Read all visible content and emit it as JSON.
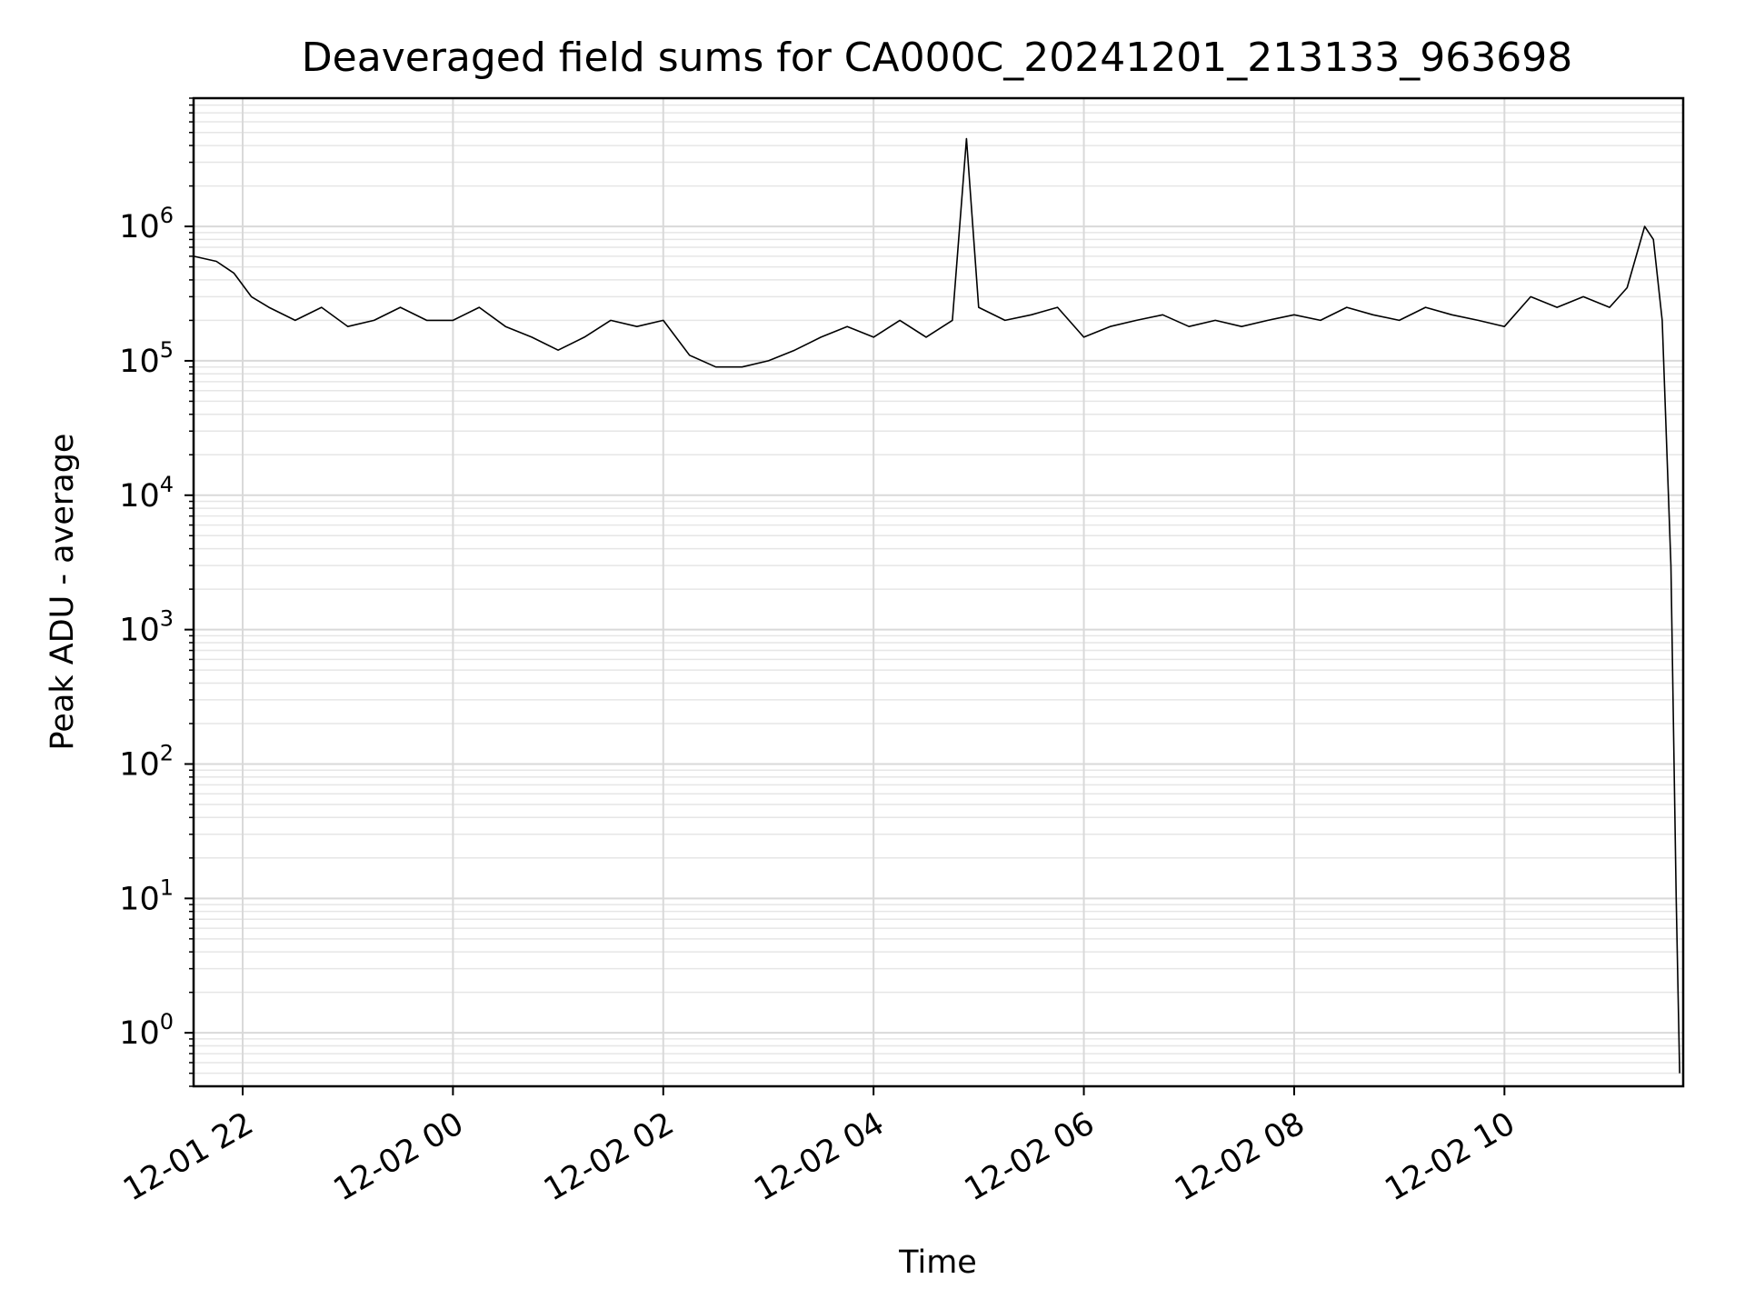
{
  "chart_data": {
    "type": "line",
    "title": "Deaveraged field sums for CA000C_20241201_213133_963698",
    "xlabel": "Time",
    "ylabel": "Peak ADU - average",
    "yscale": "log",
    "ylim": [
      0.4,
      9000000
    ],
    "xlim": [
      "2024-12-01 21:32",
      "2024-12-02 11:42"
    ],
    "grid": true,
    "x_ticks": [
      {
        "value": "2024-12-01 22:00",
        "label": "12-01 22"
      },
      {
        "value": "2024-12-02 00:00",
        "label": "12-02 00"
      },
      {
        "value": "2024-12-02 02:00",
        "label": "12-02 02"
      },
      {
        "value": "2024-12-02 04:00",
        "label": "12-02 04"
      },
      {
        "value": "2024-12-02 06:00",
        "label": "12-02 06"
      },
      {
        "value": "2024-12-02 08:00",
        "label": "12-02 08"
      },
      {
        "value": "2024-12-02 10:00",
        "label": "12-02 10"
      }
    ],
    "y_ticks": [
      {
        "value": 1,
        "base": "10",
        "exp": "0"
      },
      {
        "value": 10,
        "base": "10",
        "exp": "1"
      },
      {
        "value": 100,
        "base": "10",
        "exp": "2"
      },
      {
        "value": 1000,
        "base": "10",
        "exp": "3"
      },
      {
        "value": 10000,
        "base": "10",
        "exp": "4"
      },
      {
        "value": 100000,
        "base": "10",
        "exp": "5"
      },
      {
        "value": 1000000,
        "base": "10",
        "exp": "6"
      }
    ],
    "series": [
      {
        "color": "#000000",
        "x": [
          "2024-12-01 21:32",
          "2024-12-01 21:45",
          "2024-12-01 21:55",
          "2024-12-01 22:05",
          "2024-12-01 22:15",
          "2024-12-01 22:30",
          "2024-12-01 22:45",
          "2024-12-01 23:00",
          "2024-12-01 23:15",
          "2024-12-01 23:30",
          "2024-12-01 23:45",
          "2024-12-02 00:00",
          "2024-12-02 00:15",
          "2024-12-02 00:30",
          "2024-12-02 00:45",
          "2024-12-02 01:00",
          "2024-12-02 01:15",
          "2024-12-02 01:30",
          "2024-12-02 01:45",
          "2024-12-02 02:00",
          "2024-12-02 02:15",
          "2024-12-02 02:30",
          "2024-12-02 02:45",
          "2024-12-02 03:00",
          "2024-12-02 03:15",
          "2024-12-02 03:30",
          "2024-12-02 03:45",
          "2024-12-02 04:00",
          "2024-12-02 04:15",
          "2024-12-02 04:30",
          "2024-12-02 04:45",
          "2024-12-02 04:53",
          "2024-12-02 05:00",
          "2024-12-02 05:15",
          "2024-12-02 05:30",
          "2024-12-02 05:45",
          "2024-12-02 06:00",
          "2024-12-02 06:15",
          "2024-12-02 06:30",
          "2024-12-02 06:45",
          "2024-12-02 07:00",
          "2024-12-02 07:15",
          "2024-12-02 07:30",
          "2024-12-02 07:45",
          "2024-12-02 08:00",
          "2024-12-02 08:15",
          "2024-12-02 08:30",
          "2024-12-02 08:45",
          "2024-12-02 09:00",
          "2024-12-02 09:15",
          "2024-12-02 09:30",
          "2024-12-02 09:45",
          "2024-12-02 10:00",
          "2024-12-02 10:15",
          "2024-12-02 10:30",
          "2024-12-02 10:45",
          "2024-12-02 11:00",
          "2024-12-02 11:10",
          "2024-12-02 11:20",
          "2024-12-02 11:25",
          "2024-12-02 11:30",
          "2024-12-02 11:35",
          "2024-12-02 11:38",
          "2024-12-02 11:40"
        ],
        "y": [
          600000,
          550000,
          450000,
          300000,
          250000,
          200000,
          250000,
          180000,
          200000,
          250000,
          200000,
          200000,
          250000,
          180000,
          150000,
          120000,
          150000,
          200000,
          180000,
          200000,
          110000,
          90000,
          90000,
          100000,
          120000,
          150000,
          180000,
          150000,
          200000,
          150000,
          200000,
          4500000,
          250000,
          200000,
          220000,
          250000,
          150000,
          180000,
          200000,
          220000,
          180000,
          200000,
          180000,
          200000,
          220000,
          200000,
          250000,
          220000,
          200000,
          250000,
          220000,
          200000,
          180000,
          300000,
          250000,
          300000,
          250000,
          350000,
          1000000,
          800000,
          200000,
          3000,
          10,
          0.5
        ]
      }
    ]
  }
}
